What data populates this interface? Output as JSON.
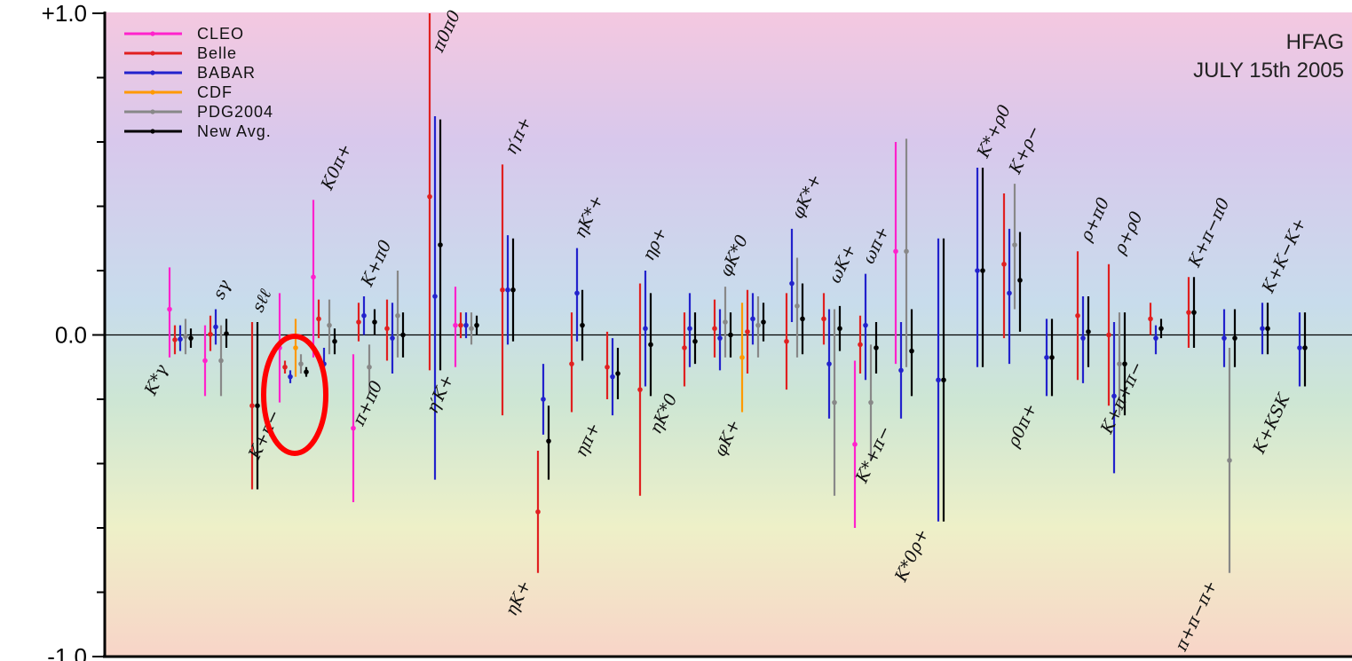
{
  "chart_data": {
    "type": "scatter",
    "subtype": "error-bar comparison of measured asymmetries per decay mode",
    "banner": [
      "HFAG",
      "JULY 15th 2005"
    ],
    "ylim": [
      -1.0,
      1.0
    ],
    "y_tick_labels": [
      "+1.0",
      "0.0",
      "-1.0"
    ],
    "y_minor_ticks": [
      -0.8,
      -0.6,
      -0.4,
      -0.2,
      0.2,
      0.4,
      0.6,
      0.8
    ],
    "zero_line": true,
    "legend_position": "top-left",
    "experiments": [
      {
        "name": "CLEO",
        "color": "#ff22cc"
      },
      {
        "name": "Belle",
        "color": "#e02020"
      },
      {
        "name": "BABAR",
        "color": "#2222cc"
      },
      {
        "name": "CDF",
        "color": "#ff9900"
      },
      {
        "name": "PDG2004",
        "color": "#888888"
      },
      {
        "name": "New Avg.",
        "color": "#000000"
      }
    ],
    "background_gradient": [
      "#f4c8e0",
      "#d8c8ec",
      "#c8dcec",
      "#cde6d4",
      "#eef0c8",
      "#f8d4c8"
    ],
    "highlight": {
      "mode": "K+π−",
      "shape": "ellipse",
      "color": "#ff0000"
    },
    "modes": [
      {
        "label": "K*γ",
        "label_side": "below",
        "points": [
          {
            "exp": "CLEO",
            "value": 0.08,
            "lo": -0.07,
            "hi": 0.21
          },
          {
            "exp": "Belle",
            "value": -0.015,
            "lo": -0.06,
            "hi": 0.03
          },
          {
            "exp": "BABAR",
            "value": -0.013,
            "lo": -0.05,
            "hi": 0.03
          },
          {
            "exp": "PDG2004",
            "value": -0.005,
            "lo": -0.06,
            "hi": 0.05
          },
          {
            "exp": "New Avg.",
            "value": -0.01,
            "lo": -0.04,
            "hi": 0.02
          }
        ]
      },
      {
        "label": "sγ",
        "label_side": "above",
        "points": [
          {
            "exp": "CLEO",
            "value": -0.08,
            "lo": -0.19,
            "hi": 0.03
          },
          {
            "exp": "Belle",
            "value": 0.002,
            "lo": -0.05,
            "hi": 0.06
          },
          {
            "exp": "BABAR",
            "value": 0.025,
            "lo": -0.03,
            "hi": 0.08
          },
          {
            "exp": "PDG2004",
            "value": -0.08,
            "lo": -0.19,
            "hi": 0.03
          },
          {
            "exp": "New Avg.",
            "value": 0.004,
            "lo": -0.04,
            "hi": 0.05
          }
        ]
      },
      {
        "label": "sℓℓ",
        "label_side": "above",
        "points": [
          {
            "exp": "Belle",
            "value": -0.22,
            "lo": -0.48,
            "hi": 0.04
          },
          {
            "exp": "New Avg.",
            "value": -0.22,
            "lo": -0.48,
            "hi": 0.04
          }
        ]
      },
      {
        "label": "K+π−",
        "label_side": "below",
        "points": [
          {
            "exp": "CLEO",
            "value": -0.04,
            "lo": -0.21,
            "hi": 0.13
          },
          {
            "exp": "Belle",
            "value": -0.1,
            "lo": -0.12,
            "hi": -0.08
          },
          {
            "exp": "BABAR",
            "value": -0.13,
            "lo": -0.15,
            "hi": -0.11
          },
          {
            "exp": "CDF",
            "value": -0.04,
            "lo": -0.13,
            "hi": 0.05
          },
          {
            "exp": "PDG2004",
            "value": -0.09,
            "lo": -0.12,
            "hi": -0.06
          },
          {
            "exp": "New Avg.",
            "value": -0.115,
            "lo": -0.13,
            "hi": -0.1
          }
        ]
      },
      {
        "label": "K0π+",
        "label_side": "above",
        "points": [
          {
            "exp": "CLEO",
            "value": 0.18,
            "lo": -0.07,
            "hi": 0.42
          },
          {
            "exp": "Belle",
            "value": 0.05,
            "lo": -0.01,
            "hi": 0.11
          },
          {
            "exp": "BABAR",
            "value": -0.09,
            "lo": -0.14,
            "hi": -0.04
          },
          {
            "exp": "PDG2004",
            "value": 0.03,
            "lo": -0.06,
            "hi": 0.11
          },
          {
            "exp": "New Avg.",
            "value": -0.02,
            "lo": -0.06,
            "hi": 0.02
          }
        ]
      },
      {
        "label": "K+π0",
        "label_side": "above",
        "points": [
          {
            "exp": "CLEO",
            "value": -0.29,
            "lo": -0.52,
            "hi": -0.06
          },
          {
            "exp": "Belle",
            "value": 0.04,
            "lo": -0.02,
            "hi": 0.1
          },
          {
            "exp": "BABAR",
            "value": 0.06,
            "lo": 0.0,
            "hi": 0.12
          },
          {
            "exp": "PDG2004",
            "value": -0.1,
            "lo": -0.18,
            "hi": -0.03
          },
          {
            "exp": "New Avg.",
            "value": 0.04,
            "lo": 0.0,
            "hi": 0.08
          }
        ]
      },
      {
        "label": "π+π0",
        "label_side": "below",
        "points": [
          {
            "exp": "Belle",
            "value": 0.02,
            "lo": -0.08,
            "hi": 0.11
          },
          {
            "exp": "BABAR",
            "value": -0.01,
            "lo": -0.12,
            "hi": 0.1
          },
          {
            "exp": "PDG2004",
            "value": 0.06,
            "lo": -0.07,
            "hi": 0.2
          },
          {
            "exp": "New Avg.",
            "value": 0.0,
            "lo": -0.07,
            "hi": 0.07
          }
        ]
      },
      {
        "label": "π0π0",
        "label_side": "above",
        "points": [
          {
            "exp": "Belle",
            "value": 0.43,
            "lo": -0.11,
            "hi": 1.0
          },
          {
            "exp": "BABAR",
            "value": 0.12,
            "lo": -0.45,
            "hi": 0.68
          },
          {
            "exp": "New Avg.",
            "value": 0.28,
            "lo": -0.11,
            "hi": 0.67
          }
        ]
      },
      {
        "label": "η′K+",
        "label_side": "below",
        "points": [
          {
            "exp": "CLEO",
            "value": 0.03,
            "lo": -0.1,
            "hi": 0.15
          },
          {
            "exp": "Belle",
            "value": 0.03,
            "lo": -0.01,
            "hi": 0.07
          },
          {
            "exp": "BABAR",
            "value": 0.03,
            "lo": -0.01,
            "hi": 0.07
          },
          {
            "exp": "PDG2004",
            "value": 0.02,
            "lo": -0.03,
            "hi": 0.07
          },
          {
            "exp": "New Avg.",
            "value": 0.03,
            "lo": 0.0,
            "hi": 0.06
          }
        ]
      },
      {
        "label": "η′π+",
        "label_side": "above",
        "points": [
          {
            "exp": "Belle",
            "value": 0.14,
            "lo": -0.25,
            "hi": 0.53
          },
          {
            "exp": "BABAR",
            "value": 0.14,
            "lo": -0.03,
            "hi": 0.31
          },
          {
            "exp": "New Avg.",
            "value": 0.14,
            "lo": -0.02,
            "hi": 0.3
          }
        ]
      },
      {
        "label": "ηK+",
        "label_side": "below",
        "points": [
          {
            "exp": "Belle",
            "value": -0.55,
            "lo": -0.74,
            "hi": -0.36
          },
          {
            "exp": "BABAR",
            "value": -0.2,
            "lo": -0.31,
            "hi": -0.09
          },
          {
            "exp": "New Avg.",
            "value": -0.33,
            "lo": -0.45,
            "hi": -0.22
          }
        ]
      },
      {
        "label": "ηK*+",
        "label_side": "above",
        "points": [
          {
            "exp": "Belle",
            "value": -0.09,
            "lo": -0.24,
            "hi": 0.07
          },
          {
            "exp": "BABAR",
            "value": 0.13,
            "lo": -0.02,
            "hi": 0.27
          },
          {
            "exp": "New Avg.",
            "value": 0.03,
            "lo": -0.08,
            "hi": 0.14
          }
        ]
      },
      {
        "label": "ηπ+",
        "label_side": "below",
        "points": [
          {
            "exp": "Belle",
            "value": -0.1,
            "lo": -0.2,
            "hi": 0.01
          },
          {
            "exp": "BABAR",
            "value": -0.13,
            "lo": -0.25,
            "hi": -0.01
          },
          {
            "exp": "New Avg.",
            "value": -0.12,
            "lo": -0.2,
            "hi": -0.04
          }
        ]
      },
      {
        "label": "ηρ+",
        "label_side": "above",
        "points": [
          {
            "exp": "Belle",
            "value": -0.17,
            "lo": -0.5,
            "hi": 0.16
          },
          {
            "exp": "BABAR",
            "value": 0.02,
            "lo": -0.16,
            "hi": 0.2
          },
          {
            "exp": "New Avg.",
            "value": -0.03,
            "lo": -0.19,
            "hi": 0.13
          }
        ]
      },
      {
        "label": "ηK*0",
        "label_side": "below",
        "points": [
          {
            "exp": "Belle",
            "value": -0.04,
            "lo": -0.16,
            "hi": 0.07
          },
          {
            "exp": "BABAR",
            "value": 0.02,
            "lo": -0.1,
            "hi": 0.13
          },
          {
            "exp": "New Avg.",
            "value": -0.02,
            "lo": -0.09,
            "hi": 0.07
          }
        ]
      },
      {
        "label": "φK*0",
        "label_side": "above",
        "points": [
          {
            "exp": "Belle",
            "value": 0.02,
            "lo": -0.07,
            "hi": 0.11
          },
          {
            "exp": "BABAR",
            "value": -0.01,
            "lo": -0.11,
            "hi": 0.08
          },
          {
            "exp": "PDG2004",
            "value": 0.04,
            "lo": -0.07,
            "hi": 0.15
          },
          {
            "exp": "New Avg.",
            "value": 0.0,
            "lo": -0.07,
            "hi": 0.07
          }
        ]
      },
      {
        "label": "φK+",
        "label_side": "below",
        "points": [
          {
            "exp": "CDF",
            "value": -0.07,
            "lo": -0.24,
            "hi": 0.1
          },
          {
            "exp": "Belle",
            "value": 0.01,
            "lo": -0.12,
            "hi": 0.14
          },
          {
            "exp": "BABAR",
            "value": 0.05,
            "lo": -0.03,
            "hi": 0.13
          },
          {
            "exp": "PDG2004",
            "value": 0.03,
            "lo": -0.07,
            "hi": 0.12
          },
          {
            "exp": "New Avg.",
            "value": 0.04,
            "lo": -0.02,
            "hi": 0.1
          }
        ]
      },
      {
        "label": "φK*+",
        "label_side": "above",
        "points": [
          {
            "exp": "Belle",
            "value": -0.02,
            "lo": -0.17,
            "hi": 0.13
          },
          {
            "exp": "BABAR",
            "value": 0.16,
            "lo": 0.04,
            "hi": 0.33
          },
          {
            "exp": "PDG2004",
            "value": 0.09,
            "lo": -0.07,
            "hi": 0.24
          },
          {
            "exp": "New Avg.",
            "value": 0.05,
            "lo": -0.06,
            "hi": 0.16
          }
        ]
      },
      {
        "label": "ωK+",
        "label_side": "above",
        "points": [
          {
            "exp": "Belle",
            "value": 0.05,
            "lo": -0.03,
            "hi": 0.13
          },
          {
            "exp": "BABAR",
            "value": -0.09,
            "lo": -0.26,
            "hi": 0.08
          },
          {
            "exp": "PDG2004",
            "value": -0.21,
            "lo": -0.5,
            "hi": 0.08
          },
          {
            "exp": "New Avg.",
            "value": 0.02,
            "lo": -0.05,
            "hi": 0.09
          }
        ]
      },
      {
        "label": "ωπ+",
        "label_side": "above",
        "points": [
          {
            "exp": "CLEO",
            "value": -0.34,
            "lo": -0.6,
            "hi": -0.08
          },
          {
            "exp": "Belle",
            "value": -0.03,
            "lo": -0.12,
            "hi": 0.06
          },
          {
            "exp": "BABAR",
            "value": 0.03,
            "lo": -0.14,
            "hi": 0.19
          },
          {
            "exp": "PDG2004",
            "value": -0.21,
            "lo": -0.39,
            "hi": -0.03
          },
          {
            "exp": "New Avg.",
            "value": -0.04,
            "lo": -0.12,
            "hi": 0.04
          }
        ]
      },
      {
        "label": "K*+π−",
        "label_side": "below",
        "points": [
          {
            "exp": "CLEO",
            "value": 0.26,
            "lo": -0.09,
            "hi": 0.6
          },
          {
            "exp": "BABAR",
            "value": -0.11,
            "lo": -0.26,
            "hi": 0.04
          },
          {
            "exp": "PDG2004",
            "value": 0.26,
            "lo": -0.1,
            "hi": 0.61
          },
          {
            "exp": "New Avg.",
            "value": -0.05,
            "lo": -0.19,
            "hi": 0.08
          }
        ]
      },
      {
        "label": "K*0ρ+",
        "label_side": "below",
        "points": [
          {
            "exp": "BABAR",
            "value": -0.14,
            "lo": -0.58,
            "hi": 0.3
          },
          {
            "exp": "New Avg.",
            "value": -0.14,
            "lo": -0.58,
            "hi": 0.3
          }
        ]
      },
      {
        "label": "K*+ρ0",
        "label_side": "above",
        "points": [
          {
            "exp": "BABAR",
            "value": 0.2,
            "lo": -0.1,
            "hi": 0.52
          },
          {
            "exp": "New Avg.",
            "value": 0.2,
            "lo": -0.1,
            "hi": 0.52
          }
        ]
      },
      {
        "label": "K+ρ−",
        "label_side": "above",
        "points": [
          {
            "exp": "Belle",
            "value": 0.22,
            "lo": -0.01,
            "hi": 0.44
          },
          {
            "exp": "BABAR",
            "value": 0.13,
            "lo": -0.09,
            "hi": 0.33
          },
          {
            "exp": "PDG2004",
            "value": 0.28,
            "lo": 0.08,
            "hi": 0.47
          },
          {
            "exp": "New Avg.",
            "value": 0.17,
            "lo": 0.01,
            "hi": 0.32
          }
        ]
      },
      {
        "label": "ρ0π+",
        "label_side": "below",
        "points": [
          {
            "exp": "BABAR",
            "value": -0.07,
            "lo": -0.19,
            "hi": 0.05
          },
          {
            "exp": "New Avg.",
            "value": -0.07,
            "lo": -0.19,
            "hi": 0.05
          }
        ]
      },
      {
        "label": "ρ+π0",
        "label_side": "above",
        "points": [
          {
            "exp": "Belle",
            "value": 0.06,
            "lo": -0.14,
            "hi": 0.26
          },
          {
            "exp": "BABAR",
            "value": -0.01,
            "lo": -0.15,
            "hi": 0.12
          },
          {
            "exp": "New Avg.",
            "value": 0.01,
            "lo": -0.1,
            "hi": 0.12
          }
        ]
      },
      {
        "label": "ρ+ρ0",
        "label_side": "above",
        "points": [
          {
            "exp": "Belle",
            "value": 0.0,
            "lo": -0.22,
            "hi": 0.22
          },
          {
            "exp": "BABAR",
            "value": -0.19,
            "lo": -0.43,
            "hi": 0.04
          },
          {
            "exp": "PDG2004",
            "value": -0.09,
            "lo": -0.25,
            "hi": 0.07
          },
          {
            "exp": "New Avg.",
            "value": -0.09,
            "lo": -0.25,
            "hi": 0.07
          }
        ]
      },
      {
        "label": "K+π+π−",
        "label_side": "below",
        "points": [
          {
            "exp": "Belle",
            "value": 0.05,
            "lo": 0.0,
            "hi": 0.1
          },
          {
            "exp": "BABAR",
            "value": -0.01,
            "lo": -0.06,
            "hi": 0.03
          },
          {
            "exp": "New Avg.",
            "value": 0.02,
            "lo": -0.01,
            "hi": 0.05
          }
        ]
      },
      {
        "label": "K+π−π0",
        "label_side": "above",
        "points": [
          {
            "exp": "Belle",
            "value": 0.07,
            "lo": -0.04,
            "hi": 0.18
          },
          {
            "exp": "New Avg.",
            "value": 0.07,
            "lo": -0.04,
            "hi": 0.18
          }
        ]
      },
      {
        "label": "π+π−π+",
        "label_side": "below",
        "points": [
          {
            "exp": "BABAR",
            "value": -0.01,
            "lo": -0.1,
            "hi": 0.08
          },
          {
            "exp": "PDG2004",
            "value": -0.39,
            "lo": -0.74,
            "hi": -0.04
          },
          {
            "exp": "New Avg.",
            "value": -0.01,
            "lo": -0.1,
            "hi": 0.08
          }
        ]
      },
      {
        "label": "K+K−K+",
        "label_side": "above",
        "points": [
          {
            "exp": "BABAR",
            "value": 0.02,
            "lo": -0.06,
            "hi": 0.1
          },
          {
            "exp": "New Avg.",
            "value": 0.02,
            "lo": -0.06,
            "hi": 0.1
          }
        ]
      },
      {
        "label": "K+KSK",
        "label_side": "below",
        "points": [
          {
            "exp": "BABAR",
            "value": -0.04,
            "lo": -0.16,
            "hi": 0.07
          },
          {
            "exp": "New Avg.",
            "value": -0.04,
            "lo": -0.16,
            "hi": 0.07
          }
        ]
      }
    ]
  }
}
